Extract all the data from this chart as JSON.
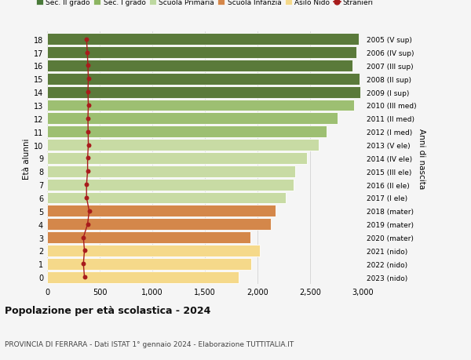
{
  "ages": [
    0,
    1,
    2,
    3,
    4,
    5,
    6,
    7,
    8,
    9,
    10,
    11,
    12,
    13,
    14,
    15,
    16,
    17,
    18
  ],
  "right_labels": [
    "2023 (nido)",
    "2022 (nido)",
    "2021 (nido)",
    "2020 (mater)",
    "2019 (mater)",
    "2018 (mater)",
    "2017 (I ele)",
    "2016 (II ele)",
    "2015 (III ele)",
    "2014 (IV ele)",
    "2013 (V ele)",
    "2012 (I med)",
    "2011 (II med)",
    "2010 (III med)",
    "2009 (I sup)",
    "2008 (II sup)",
    "2007 (III sup)",
    "2006 (IV sup)",
    "2005 (V sup)"
  ],
  "bar_values": [
    1820,
    1940,
    2020,
    1930,
    2130,
    2170,
    2270,
    2340,
    2360,
    2470,
    2580,
    2660,
    2760,
    2920,
    2980,
    2970,
    2900,
    2940,
    2960
  ],
  "bar_colors": [
    "#f5d98a",
    "#f5d98a",
    "#f5d98a",
    "#d4874a",
    "#d4874a",
    "#d4874a",
    "#c8dba4",
    "#c8dba4",
    "#c8dba4",
    "#c8dba4",
    "#c8dba4",
    "#9dbf72",
    "#9dbf72",
    "#9dbf72",
    "#5a7a3a",
    "#5a7a3a",
    "#5a7a3a",
    "#5a7a3a",
    "#5a7a3a"
  ],
  "stranieri_values": [
    355,
    345,
    355,
    345,
    385,
    400,
    375,
    375,
    385,
    385,
    392,
    390,
    388,
    392,
    388,
    392,
    388,
    382,
    375
  ],
  "xlim": [
    0,
    3000
  ],
  "xticks": [
    0,
    500,
    1000,
    1500,
    2000,
    2500,
    3000
  ],
  "title": "Popolazione per età scolastica - 2024",
  "subtitle": "PROVINCIA DI FERRARA - Dati ISTAT 1° gennaio 2024 - Elaborazione TUTTITALIA.IT",
  "ylabel": "Età alunni",
  "right_ylabel": "Anni di nascita",
  "legend_labels": [
    "Sec. II grado",
    "Sec. I grado",
    "Scuola Primaria",
    "Scuola Infanzia",
    "Asilo Nido",
    "Stranieri"
  ],
  "legend_colors": [
    "#4a7a3a",
    "#8db562",
    "#bdd8a0",
    "#d4874a",
    "#f5d98a",
    "#a81c1c"
  ],
  "bg_color": "#f5f5f5",
  "figsize": [
    6.0,
    4.6
  ],
  "dpi": 100
}
